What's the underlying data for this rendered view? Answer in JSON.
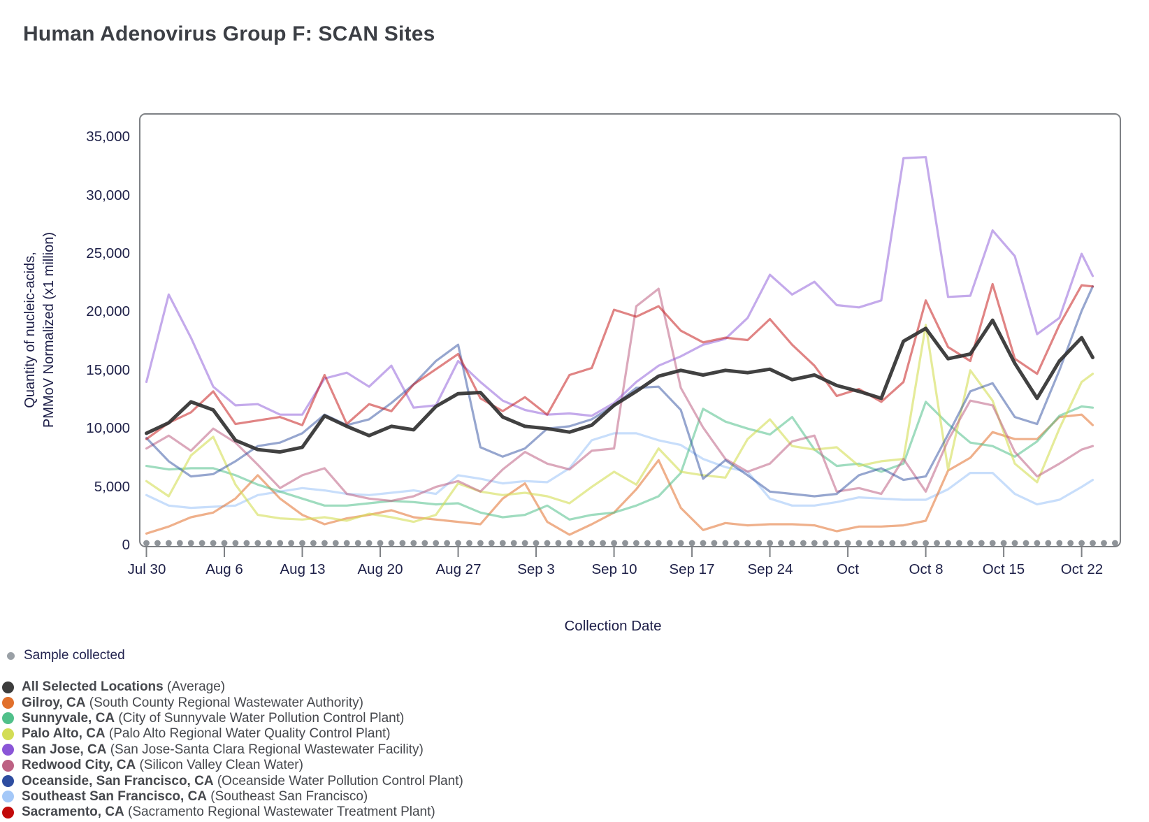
{
  "title": "Human Adenovirus Group F: SCAN Sites",
  "chart_data": {
    "type": "line",
    "title": "Human Adenovirus Group F: SCAN Sites",
    "xlabel": "Collection Date",
    "ylabel_lines": [
      "Quantity of nucleic-acids,",
      "PMMoV Normalized (x1 million)"
    ],
    "ylim": [
      0,
      37000
    ],
    "grid": false,
    "legend_position": "bottom-left",
    "yticks": [
      {
        "value": 0,
        "label": "0"
      },
      {
        "value": 5000,
        "label": "5,000"
      },
      {
        "value": 10000,
        "label": "10,000"
      },
      {
        "value": 15000,
        "label": "15,000"
      },
      {
        "value": 20000,
        "label": "20,000"
      },
      {
        "value": 25000,
        "label": "25,000"
      },
      {
        "value": 30000,
        "label": "30,000"
      },
      {
        "value": 35000,
        "label": "35,000"
      }
    ],
    "xticks": [
      {
        "day": 0,
        "label": "Jul 30"
      },
      {
        "day": 7,
        "label": "Aug 6"
      },
      {
        "day": 14,
        "label": "Aug 13"
      },
      {
        "day": 21,
        "label": "Aug 20"
      },
      {
        "day": 28,
        "label": "Aug 27"
      },
      {
        "day": 35,
        "label": "Sep 3"
      },
      {
        "day": 42,
        "label": "Sep 10"
      },
      {
        "day": 49,
        "label": "Sep 17"
      },
      {
        "day": 56,
        "label": "Sep 24"
      },
      {
        "day": 63,
        "label": "Oct"
      },
      {
        "day": 70,
        "label": "Oct 8"
      },
      {
        "day": 77,
        "label": "Oct 15"
      },
      {
        "day": 84,
        "label": "Oct 22"
      }
    ],
    "x_days": [
      0,
      2,
      4,
      6,
      8,
      10,
      12,
      14,
      16,
      18,
      20,
      22,
      24,
      26,
      28,
      30,
      32,
      34,
      36,
      38,
      40,
      42,
      44,
      46,
      48,
      50,
      52,
      54,
      56,
      58,
      60,
      62,
      64,
      66,
      68,
      70,
      72,
      74,
      76,
      78,
      80,
      82,
      84,
      85
    ],
    "sample_marks": {
      "label": "Sample collected",
      "color": "#8f9499",
      "day_start": 0,
      "day_end": 87
    },
    "series": [
      {
        "slug": "southeast-sf",
        "name": "Southeast San Francisco, CA",
        "color": "#a4c8f8",
        "opacity": 0.6,
        "width": 3.2,
        "values": [
          4300,
          3400,
          3200,
          3300,
          3400,
          4300,
          4600,
          4900,
          4700,
          4400,
          4300,
          4500,
          4700,
          4400,
          6000,
          5700,
          5300,
          5500,
          5400,
          6600,
          9000,
          9600,
          9600,
          9000,
          8600,
          7400,
          6700,
          6300,
          4000,
          3400,
          3400,
          3700,
          4100,
          4000,
          3900,
          3900,
          4800,
          6200,
          6200,
          4400,
          3500,
          3900,
          5000,
          5600
        ]
      },
      {
        "slug": "gilroy",
        "name": "Gilroy, CA",
        "color": "#e1702c",
        "opacity": 0.55,
        "width": 3.2,
        "values": [
          1000,
          1600,
          2400,
          2800,
          4000,
          6000,
          4000,
          2600,
          1800,
          2300,
          2600,
          3000,
          2400,
          2200,
          2000,
          1800,
          4000,
          5300,
          2000,
          900,
          1800,
          2800,
          4800,
          7300,
          3200,
          1300,
          1900,
          1700,
          1800,
          1800,
          1700,
          1200,
          1600,
          1600,
          1700,
          2100,
          6400,
          7500,
          9700,
          9100,
          9100,
          11000,
          11200,
          10300
        ]
      },
      {
        "slug": "sunnyvale",
        "name": "Sunnyvale, CA",
        "color": "#50c08a",
        "opacity": 0.55,
        "width": 3.2,
        "values": [
          6800,
          6500,
          6600,
          6600,
          6000,
          5200,
          4600,
          4000,
          3400,
          3400,
          3600,
          3800,
          3700,
          3500,
          3600,
          2800,
          2400,
          2600,
          3400,
          2200,
          2600,
          2800,
          3400,
          4200,
          6200,
          11700,
          10600,
          10000,
          9500,
          11000,
          8200,
          6800,
          7000,
          6300,
          7000,
          12300,
          10400,
          8800,
          8500,
          7600,
          8900,
          11100,
          11900,
          11800
        ]
      },
      {
        "slug": "palo-alto",
        "name": "Palo Alto, CA",
        "color": "#d3dd55",
        "opacity": 0.6,
        "width": 3.2,
        "values": [
          5500,
          4200,
          7700,
          9300,
          5200,
          2600,
          2300,
          2200,
          2400,
          2100,
          2700,
          2400,
          2000,
          2600,
          5300,
          4600,
          4300,
          4500,
          4200,
          3600,
          5000,
          6300,
          5200,
          8300,
          6300,
          6000,
          5800,
          9100,
          10800,
          8500,
          8200,
          8400,
          6800,
          7200,
          7400,
          18900,
          6500,
          15000,
          12400,
          7000,
          5400,
          10000,
          14000,
          14700
        ]
      },
      {
        "slug": "redwood-city",
        "name": "Redwood City, CA",
        "color": "#bd6183",
        "opacity": 0.55,
        "width": 3.2,
        "values": [
          8300,
          9400,
          8100,
          10000,
          8800,
          6900,
          4900,
          6000,
          6600,
          4400,
          4000,
          3800,
          4200,
          5000,
          5500,
          4600,
          6500,
          8000,
          7000,
          6500,
          8100,
          8300,
          20500,
          22000,
          13500,
          10100,
          7400,
          6300,
          7000,
          8900,
          9400,
          4600,
          4900,
          4400,
          7400,
          4600,
          9000,
          12400,
          12000,
          8000,
          5900,
          7000,
          8200,
          8500
        ]
      },
      {
        "slug": "san-jose",
        "name": "San Jose, CA",
        "color": "#8a55d7",
        "opacity": 0.5,
        "width": 3.2,
        "values": [
          14000,
          21500,
          17800,
          13600,
          12000,
          12100,
          11200,
          11200,
          14300,
          14800,
          13600,
          15400,
          11800,
          12000,
          15800,
          14000,
          12400,
          11600,
          11200,
          11300,
          11100,
          12200,
          14000,
          15400,
          16200,
          17200,
          17700,
          19500,
          23200,
          21500,
          22600,
          20600,
          20400,
          21000,
          33200,
          33300,
          21300,
          21400,
          27000,
          24800,
          18100,
          19500,
          25000,
          23100
        ]
      },
      {
        "slug": "oceanside",
        "name": "Oceanside, San Francisco, CA",
        "color": "#2e4da0",
        "opacity": 0.5,
        "width": 3.2,
        "values": [
          9200,
          7200,
          5900,
          6100,
          7200,
          8500,
          8800,
          9600,
          11200,
          10300,
          10800,
          12200,
          13800,
          15800,
          17200,
          8400,
          7600,
          8300,
          10000,
          10200,
          10800,
          12000,
          13500,
          13600,
          11600,
          5700,
          7300,
          6000,
          4600,
          4400,
          4200,
          4400,
          6000,
          6600,
          5600,
          5900,
          9500,
          13200,
          13900,
          11000,
          10400,
          15000,
          20100,
          22200
        ]
      },
      {
        "slug": "sacramento",
        "name": "Sacramento, CA",
        "color": "#c20a0a",
        "opacity": 0.5,
        "width": 3.2,
        "values": [
          9100,
          10500,
          11400,
          13200,
          10400,
          10700,
          11000,
          10300,
          14600,
          10400,
          12100,
          11500,
          13800,
          15100,
          16400,
          12600,
          11500,
          12700,
          11200,
          14600,
          15200,
          20200,
          19600,
          20500,
          18400,
          17400,
          17800,
          17600,
          19400,
          17200,
          15400,
          12800,
          13400,
          12300,
          14000,
          21000,
          17000,
          15800,
          22400,
          16000,
          14700,
          18900,
          22300,
          22200
        ]
      },
      {
        "slug": "average",
        "name": "All Selected Locations",
        "color": "#333333",
        "opacity": 0.93,
        "width": 5,
        "values": [
          9600,
          10500,
          12300,
          11600,
          9000,
          8200,
          8000,
          8400,
          11100,
          10200,
          9400,
          10200,
          9900,
          11900,
          13000,
          13100,
          11000,
          10200,
          10000,
          9700,
          10300,
          12000,
          13200,
          14500,
          15000,
          14600,
          15000,
          14800,
          15100,
          14200,
          14600,
          13700,
          13200,
          12600,
          17500,
          18600,
          16000,
          16400,
          19300,
          15600,
          12600,
          15800,
          17800,
          16100
        ]
      }
    ]
  },
  "legend": {
    "sample": {
      "label": "Sample collected",
      "color": "#9aa0a6"
    },
    "locations": [
      {
        "name": "All Selected Locations",
        "detail": "(Average)",
        "color": "#3d3d3d"
      },
      {
        "name": "Gilroy, CA",
        "detail": "(South County Regional Wastewater Authority)",
        "color": "#e1702c"
      },
      {
        "name": "Sunnyvale, CA",
        "detail": "(City of Sunnyvale Water Pollution Control Plant)",
        "color": "#50c08a"
      },
      {
        "name": "Palo Alto, CA",
        "detail": "(Palo Alto Regional Water Quality Control Plant)",
        "color": "#d3dd55"
      },
      {
        "name": "San Jose, CA",
        "detail": "(San Jose-Santa Clara Regional Wastewater Facility)",
        "color": "#8a55d7"
      },
      {
        "name": "Redwood City, CA",
        "detail": "(Silicon Valley Clean Water)",
        "color": "#bd6183"
      },
      {
        "name": "Oceanside, San Francisco, CA",
        "detail": "(Oceanside Water Pollution Control Plant)",
        "color": "#2e4da0"
      },
      {
        "name": "Southeast San Francisco, CA",
        "detail": "(Southeast San Francisco)",
        "color": "#a4c8f8"
      },
      {
        "name": "Sacramento, CA",
        "detail": "(Sacramento Regional Wastewater Treatment Plant)",
        "color": "#c20a0a"
      }
    ]
  }
}
